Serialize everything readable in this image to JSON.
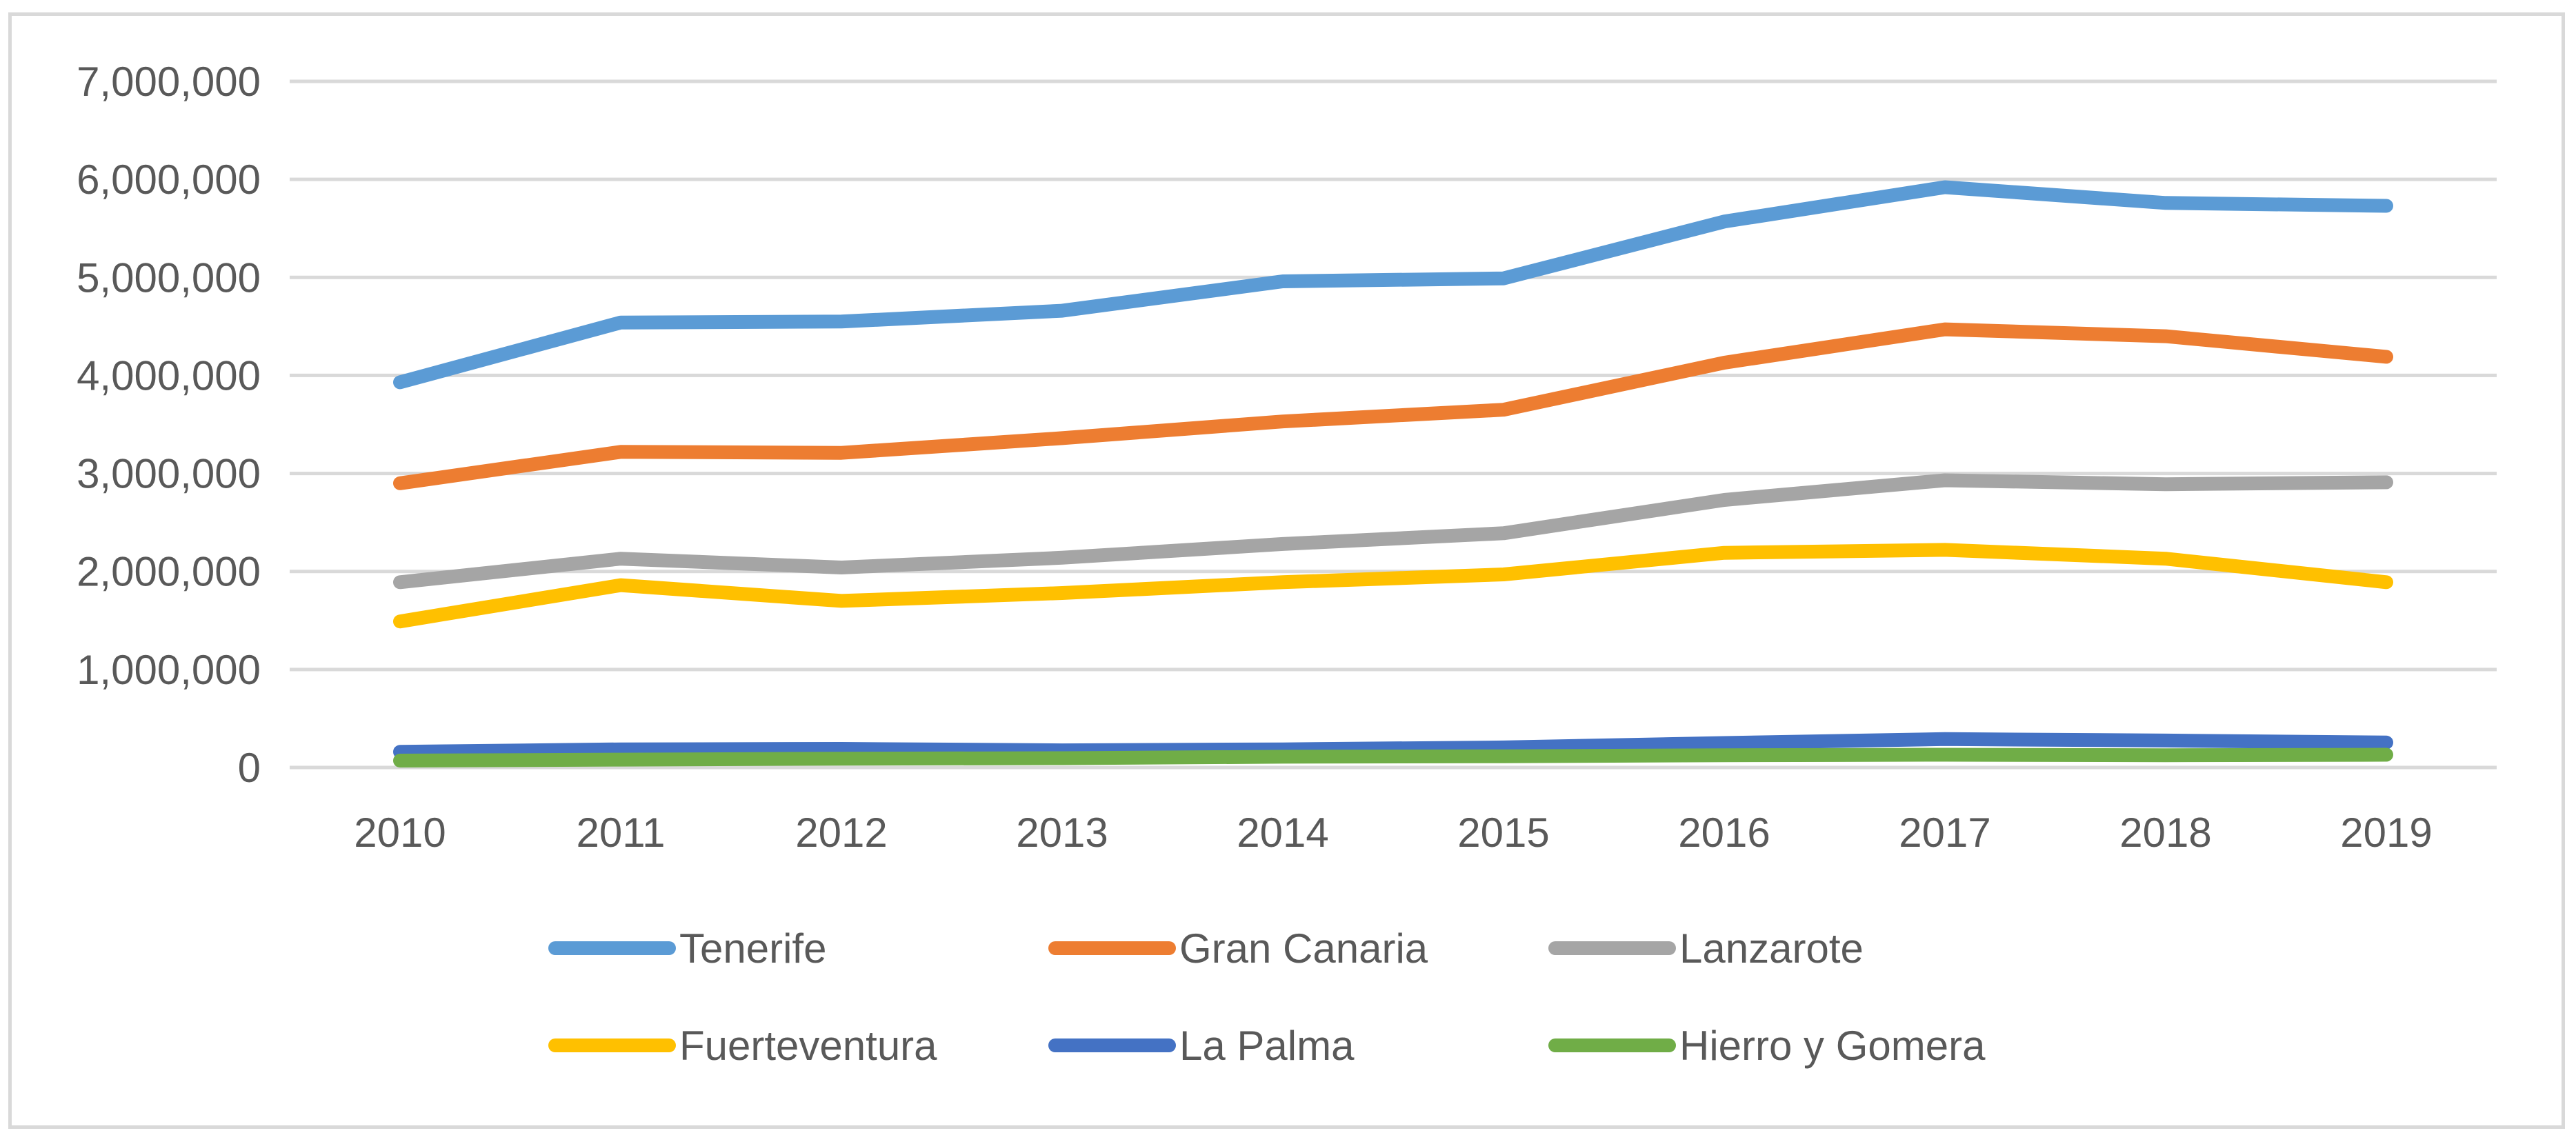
{
  "chart_data": {
    "type": "line",
    "title": "",
    "xlabel": "",
    "ylabel": "",
    "x": [
      "2010",
      "2011",
      "2012",
      "2013",
      "2014",
      "2015",
      "2016",
      "2017",
      "2018",
      "2019"
    ],
    "ylim": [
      0,
      7000000
    ],
    "yticks": [
      0,
      1000000,
      2000000,
      3000000,
      4000000,
      5000000,
      6000000,
      7000000
    ],
    "ytick_labels": [
      "0",
      "1,000,000",
      "2,000,000",
      "3,000,000",
      "4,000,000",
      "5,000,000",
      "6,000,000",
      "7,000,000"
    ],
    "grid": true,
    "legend_position": "bottom",
    "series": [
      {
        "name": "Tenerife",
        "color": "#5b9bd5",
        "values": [
          3930000,
          4540000,
          4550000,
          4660000,
          4960000,
          4990000,
          5570000,
          5920000,
          5760000,
          5730000
        ]
      },
      {
        "name": "Gran Canaria",
        "color": "#ed7d31",
        "values": [
          2900000,
          3220000,
          3210000,
          3360000,
          3530000,
          3650000,
          4130000,
          4470000,
          4400000,
          4190000
        ]
      },
      {
        "name": "Lanzarote",
        "color": "#a5a5a5",
        "values": [
          1890000,
          2130000,
          2040000,
          2140000,
          2280000,
          2390000,
          2730000,
          2930000,
          2890000,
          2910000
        ]
      },
      {
        "name": "Fuerteventura",
        "color": "#ffc000",
        "values": [
          1490000,
          1860000,
          1700000,
          1780000,
          1890000,
          1970000,
          2190000,
          2220000,
          2130000,
          1890000
        ]
      },
      {
        "name": "La Palma",
        "color": "#4472c4",
        "values": [
          160000,
          185000,
          190000,
          175000,
          185000,
          205000,
          250000,
          290000,
          275000,
          255000
        ]
      },
      {
        "name": "Hierro y Gomera",
        "color": "#70ad47",
        "values": [
          70000,
          80000,
          90000,
          95000,
          110000,
          115000,
          125000,
          130000,
          125000,
          130000
        ]
      }
    ]
  }
}
